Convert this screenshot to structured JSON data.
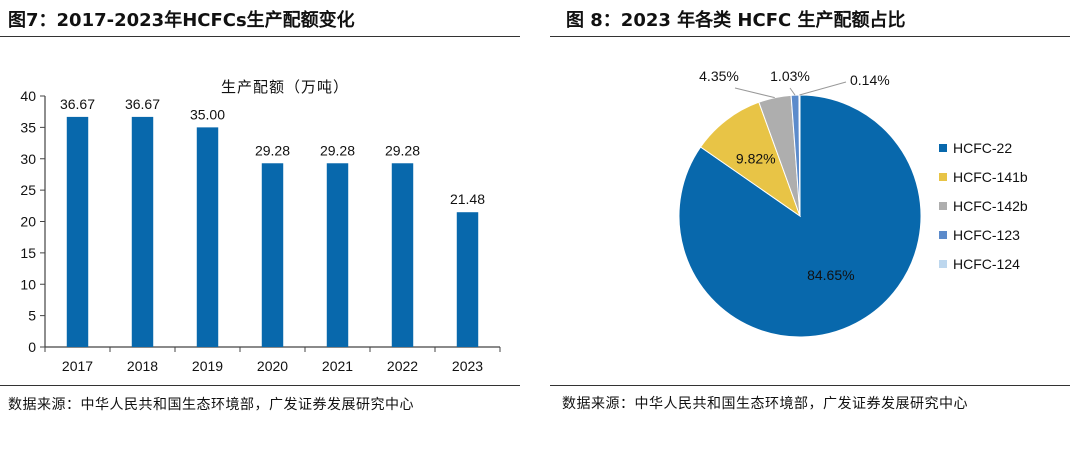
{
  "colors": {
    "bar": "#0868AC",
    "axis": "#444444",
    "text": "#111111",
    "pie": [
      "#0868AC",
      "#E8C446",
      "#AEAEAE",
      "#5C8BCB",
      "#BDD7EE"
    ]
  },
  "left": {
    "title": "图7：2017-2023年HCFCs生产配额变化",
    "source": "数据来源：中华人民共和国生态环境部，广发证券发展研究中心"
  },
  "right": {
    "title": "图 8：2023 年各类 HCFC 生产配额占比",
    "source": "数据来源：中华人民共和国生态环境部，广发证券发展研究中心"
  },
  "chart_data": [
    {
      "type": "bar",
      "title": "生产配额（万吨）",
      "categories": [
        "2017",
        "2018",
        "2019",
        "2020",
        "2021",
        "2022",
        "2023"
      ],
      "values": [
        36.67,
        36.67,
        35.0,
        29.28,
        29.28,
        29.28,
        21.48
      ],
      "value_labels": [
        "36.67",
        "36.67",
        "35.00",
        "29.28",
        "29.28",
        "29.28",
        "21.48"
      ],
      "xlabel": "",
      "ylabel": "",
      "ylim": [
        0,
        40
      ],
      "yticks": [
        "0",
        "5",
        "10",
        "15",
        "20",
        "25",
        "30",
        "35",
        "40"
      ],
      "grid": false,
      "legend": "none"
    },
    {
      "type": "pie",
      "title": "",
      "labels": [
        "HCFC-22",
        "HCFC-141b",
        "HCFC-142b",
        "HCFC-123",
        "HCFC-124"
      ],
      "values": [
        84.65,
        9.82,
        4.35,
        1.03,
        0.14
      ],
      "value_labels": [
        "84.65%",
        "9.82%",
        "4.35%",
        "1.03%",
        "0.14%"
      ],
      "legend": "right"
    }
  ]
}
